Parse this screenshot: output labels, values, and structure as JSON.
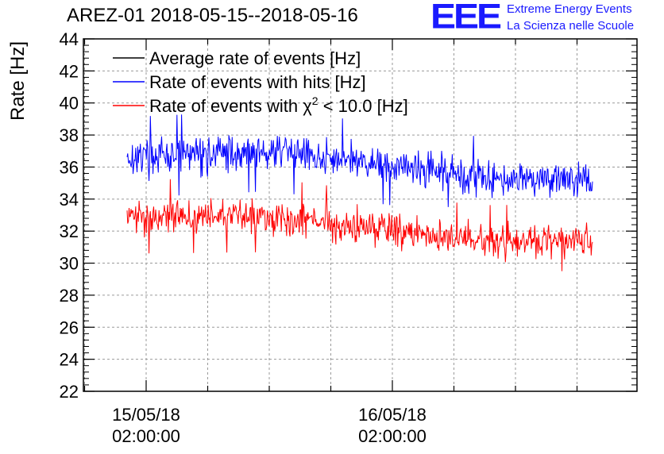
{
  "title": "AREZ-01 2018-05-15--2018-05-16",
  "logo": {
    "text": "EEE",
    "line1": "Extreme Energy Events",
    "line2": "La Scienza nelle Scuole",
    "color": "#1a1aff"
  },
  "chart_data": {
    "type": "line",
    "title": "AREZ-01 2018-05-15--2018-05-16",
    "xlabel": "",
    "ylabel": "Rate [Hz]",
    "ylim": [
      22,
      44
    ],
    "yticks": [
      22,
      24,
      26,
      28,
      30,
      32,
      34,
      36,
      38,
      40,
      42,
      44
    ],
    "grid": true,
    "legend_position": "top-left",
    "xtick_labels": [
      {
        "date": "15/05/18",
        "time": "02:00:00"
      },
      {
        "date": "16/05/18",
        "time": "02:00:00"
      }
    ],
    "series": [
      {
        "name": "Average rate of events [Hz]",
        "legend_text": "Average rate of events [Hz]",
        "color": "#000000",
        "values": []
      },
      {
        "name": "Rate of events with hits [Hz]",
        "legend_text": "Rate of events with hits [Hz]",
        "color": "#0000ff",
        "trend": [
          {
            "x": 0.0,
            "y": 36.6
          },
          {
            "x": 0.3,
            "y": 37.0
          },
          {
            "x": 0.5,
            "y": 36.4
          },
          {
            "x": 0.75,
            "y": 35.4
          },
          {
            "x": 1.0,
            "y": 35.3
          }
        ],
        "noise_range": 1.2,
        "max": 39.3,
        "min": 33.5
      },
      {
        "name": "Rate of events with chi2 < 10.0 [Hz]",
        "legend_prefix": "Rate of events with ",
        "legend_symbol": "χ",
        "legend_superscript": "2",
        "legend_suffix": " < 10.0 [Hz]",
        "color": "#ff0000",
        "trend": [
          {
            "x": 0.0,
            "y": 32.9
          },
          {
            "x": 0.3,
            "y": 33.0
          },
          {
            "x": 0.5,
            "y": 32.3
          },
          {
            "x": 0.75,
            "y": 31.3
          },
          {
            "x": 1.0,
            "y": 31.4
          }
        ],
        "noise_range": 1.1,
        "max": 36.2,
        "min": 29.5
      }
    ]
  }
}
